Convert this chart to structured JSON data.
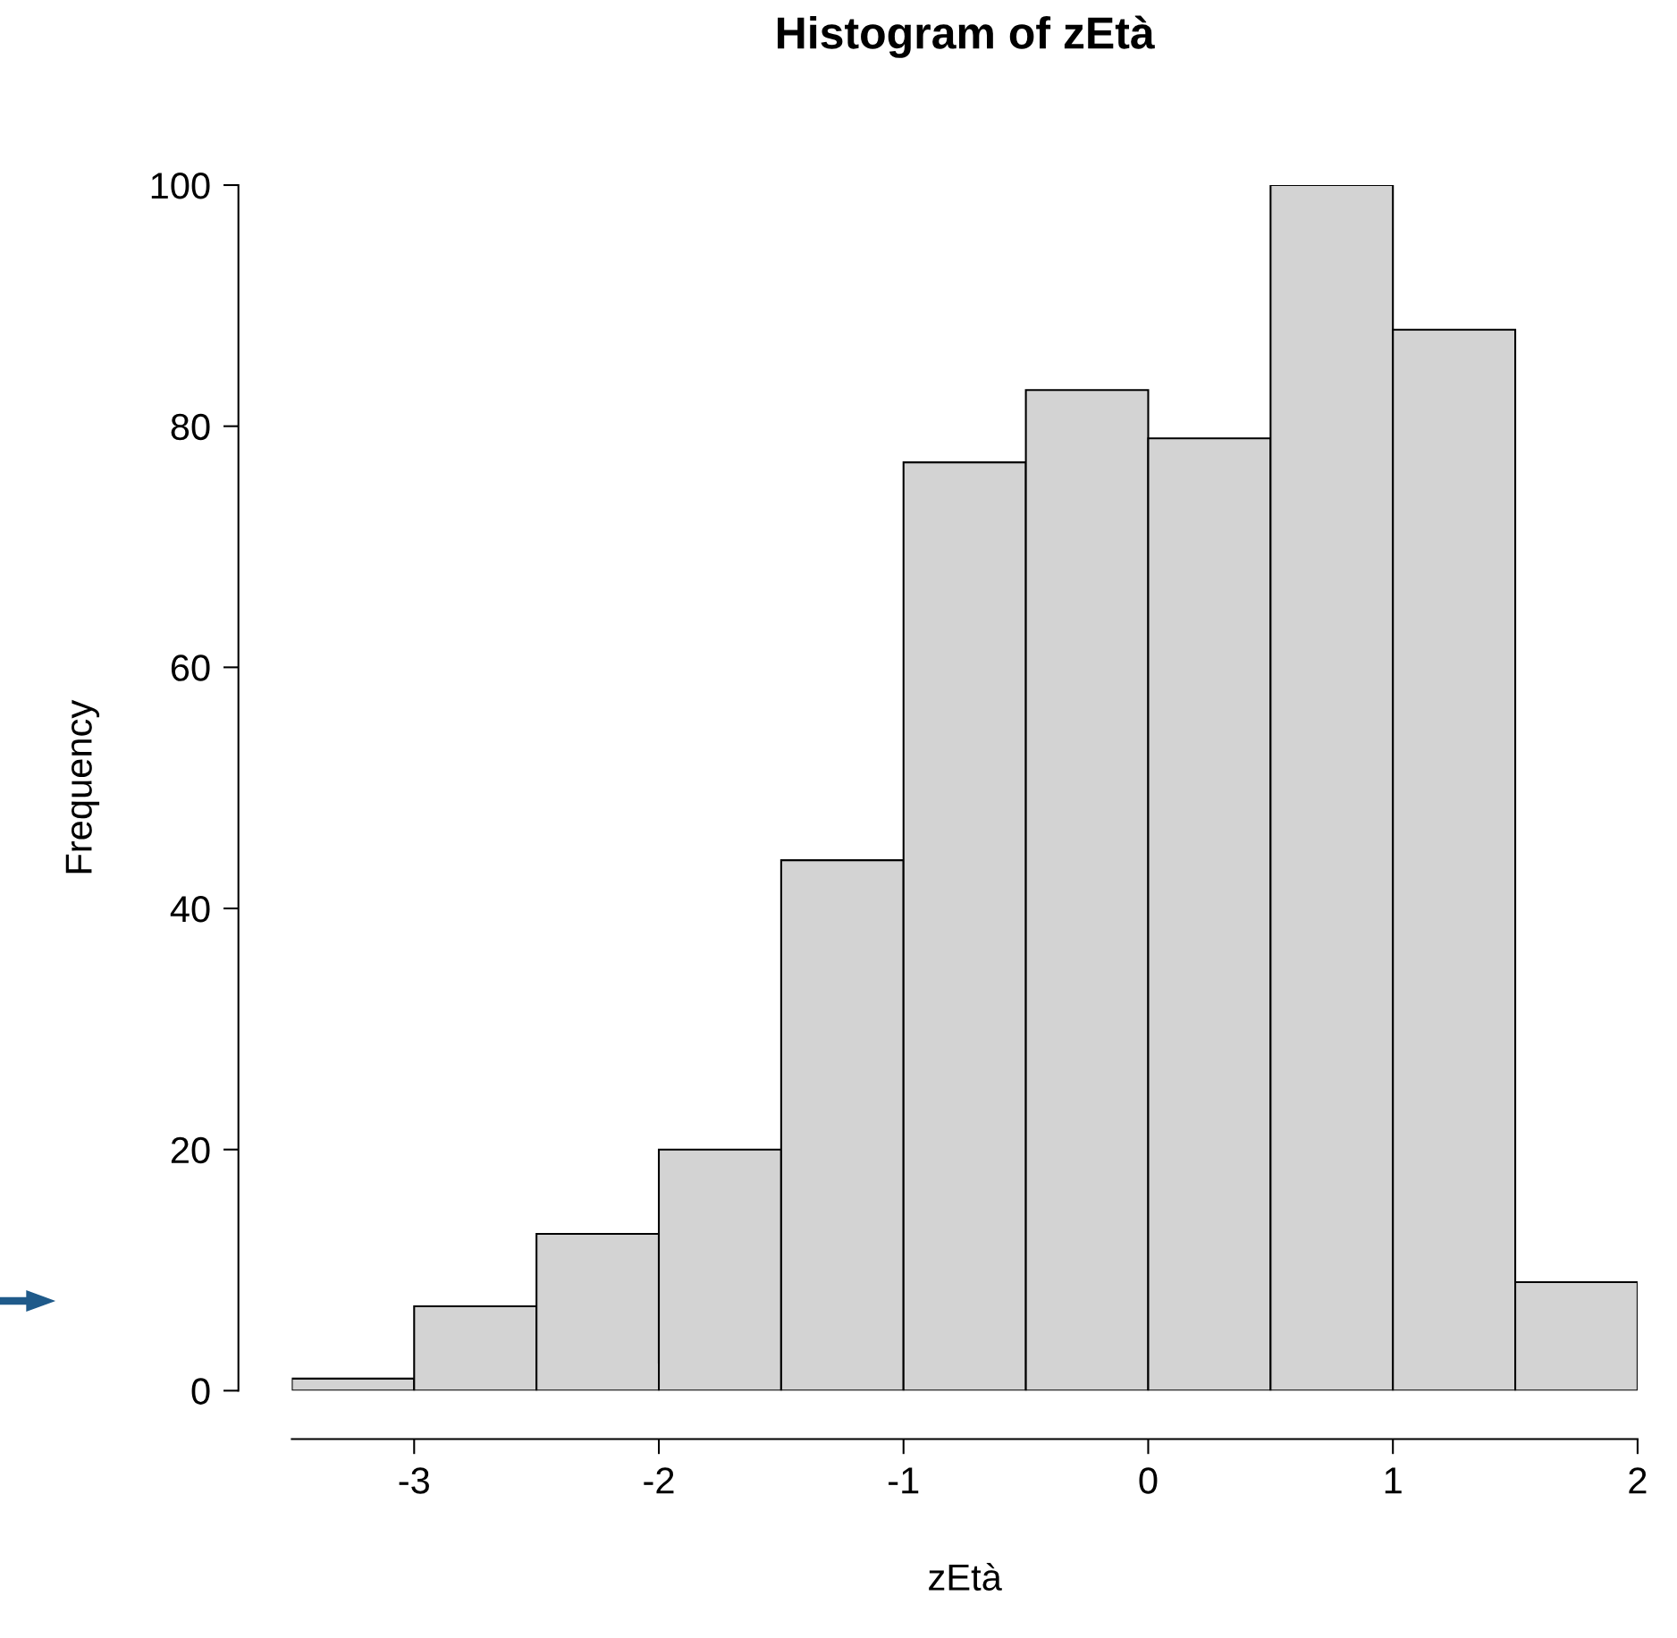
{
  "chart_data": {
    "type": "histogram",
    "title": "Histogram of zEtà",
    "xlabel": "zEtà",
    "ylabel": "Frequency",
    "bins": [
      -3.5,
      -3,
      -2.5,
      -2,
      -1.5,
      -1,
      -0.5,
      0,
      0.5,
      1,
      1.5,
      2
    ],
    "values": [
      1,
      7,
      13,
      20,
      44,
      77,
      83,
      79,
      100,
      88,
      9
    ],
    "color": "#d3d3d3",
    "xlim": [
      -3.5,
      2
    ],
    "ylim": [
      0,
      100
    ],
    "xticks": [
      -3,
      -2,
      -1,
      0,
      1,
      2
    ],
    "yticks": [
      0,
      20,
      40,
      60,
      80,
      100
    ],
    "grid": false
  }
}
